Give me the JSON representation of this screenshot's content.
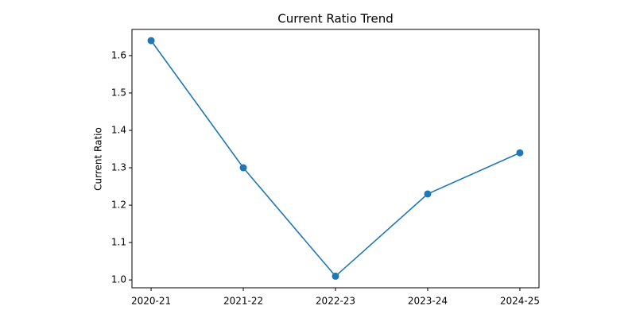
{
  "chart_data": {
    "type": "line",
    "title": "Current Ratio Trend",
    "y_label": "Current Ratio",
    "categories": [
      "2020-21",
      "2021-22",
      "2022-23",
      "2023-24",
      "2024-25"
    ],
    "series": [
      {
        "name": "Current Ratio",
        "color": "#1f77b4",
        "values": [
          1.64,
          1.3,
          1.01,
          1.23,
          1.34
        ]
      }
    ],
    "ylim": [
      0.979,
      1.67
    ],
    "yticks": [
      {
        "value": 1,
        "label": "1.0"
      },
      1.1,
      1.2,
      1.3,
      1.4,
      1.5,
      1.6
    ],
    "grid": false
  }
}
